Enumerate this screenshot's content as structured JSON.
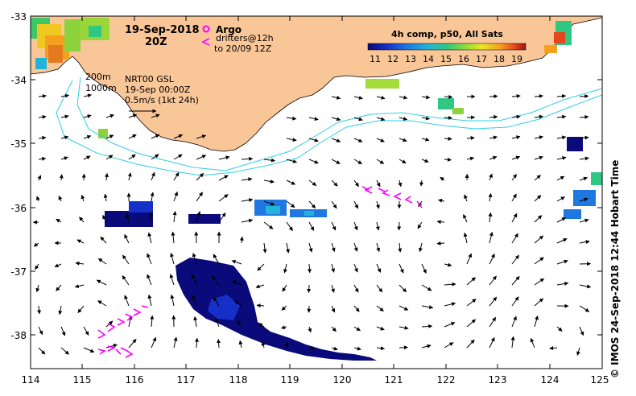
{
  "map": {
    "title_date": "19-Sep-2018",
    "title_time": "20Z",
    "legend": {
      "argo_label": "Argo",
      "drifters_label": "drifters@12h",
      "drifters_range": "to 20/09 12Z",
      "composite_label": "4h comp, p50, All Sats",
      "colorbar_ticks": [
        "11",
        "12",
        "13",
        "14",
        "15",
        "16",
        "17",
        "18",
        "19"
      ],
      "colorbar_colors": [
        "#0a0a7a",
        "#1530c8",
        "#1e78e0",
        "#22b4d8",
        "#2ec882",
        "#90dc3a",
        "#e6e628",
        "#f5a01e",
        "#e6461e",
        "#a01414"
      ]
    },
    "isobaths": {
      "label_200": "200m",
      "label_1000": "1000m",
      "color": "#30d0e0"
    },
    "current_info": {
      "model": "NRT00 GSL",
      "time": "19-Sep 00:00Z",
      "scale": "0.5m/s (1kt 24h)"
    },
    "x_ticks": [
      "114",
      "115",
      "116",
      "117",
      "118",
      "119",
      "120",
      "121",
      "122",
      "123",
      "124",
      "125"
    ],
    "y_ticks": [
      "-33",
      "-34",
      "-35",
      "-36",
      "-37",
      "-38"
    ],
    "credit": "© IMOS 24-Sep-2018 12:44 Hobart Time",
    "colors": {
      "land": "#f9c698",
      "drifter": "#ff00ff",
      "ocean": "#ffffff"
    }
  }
}
